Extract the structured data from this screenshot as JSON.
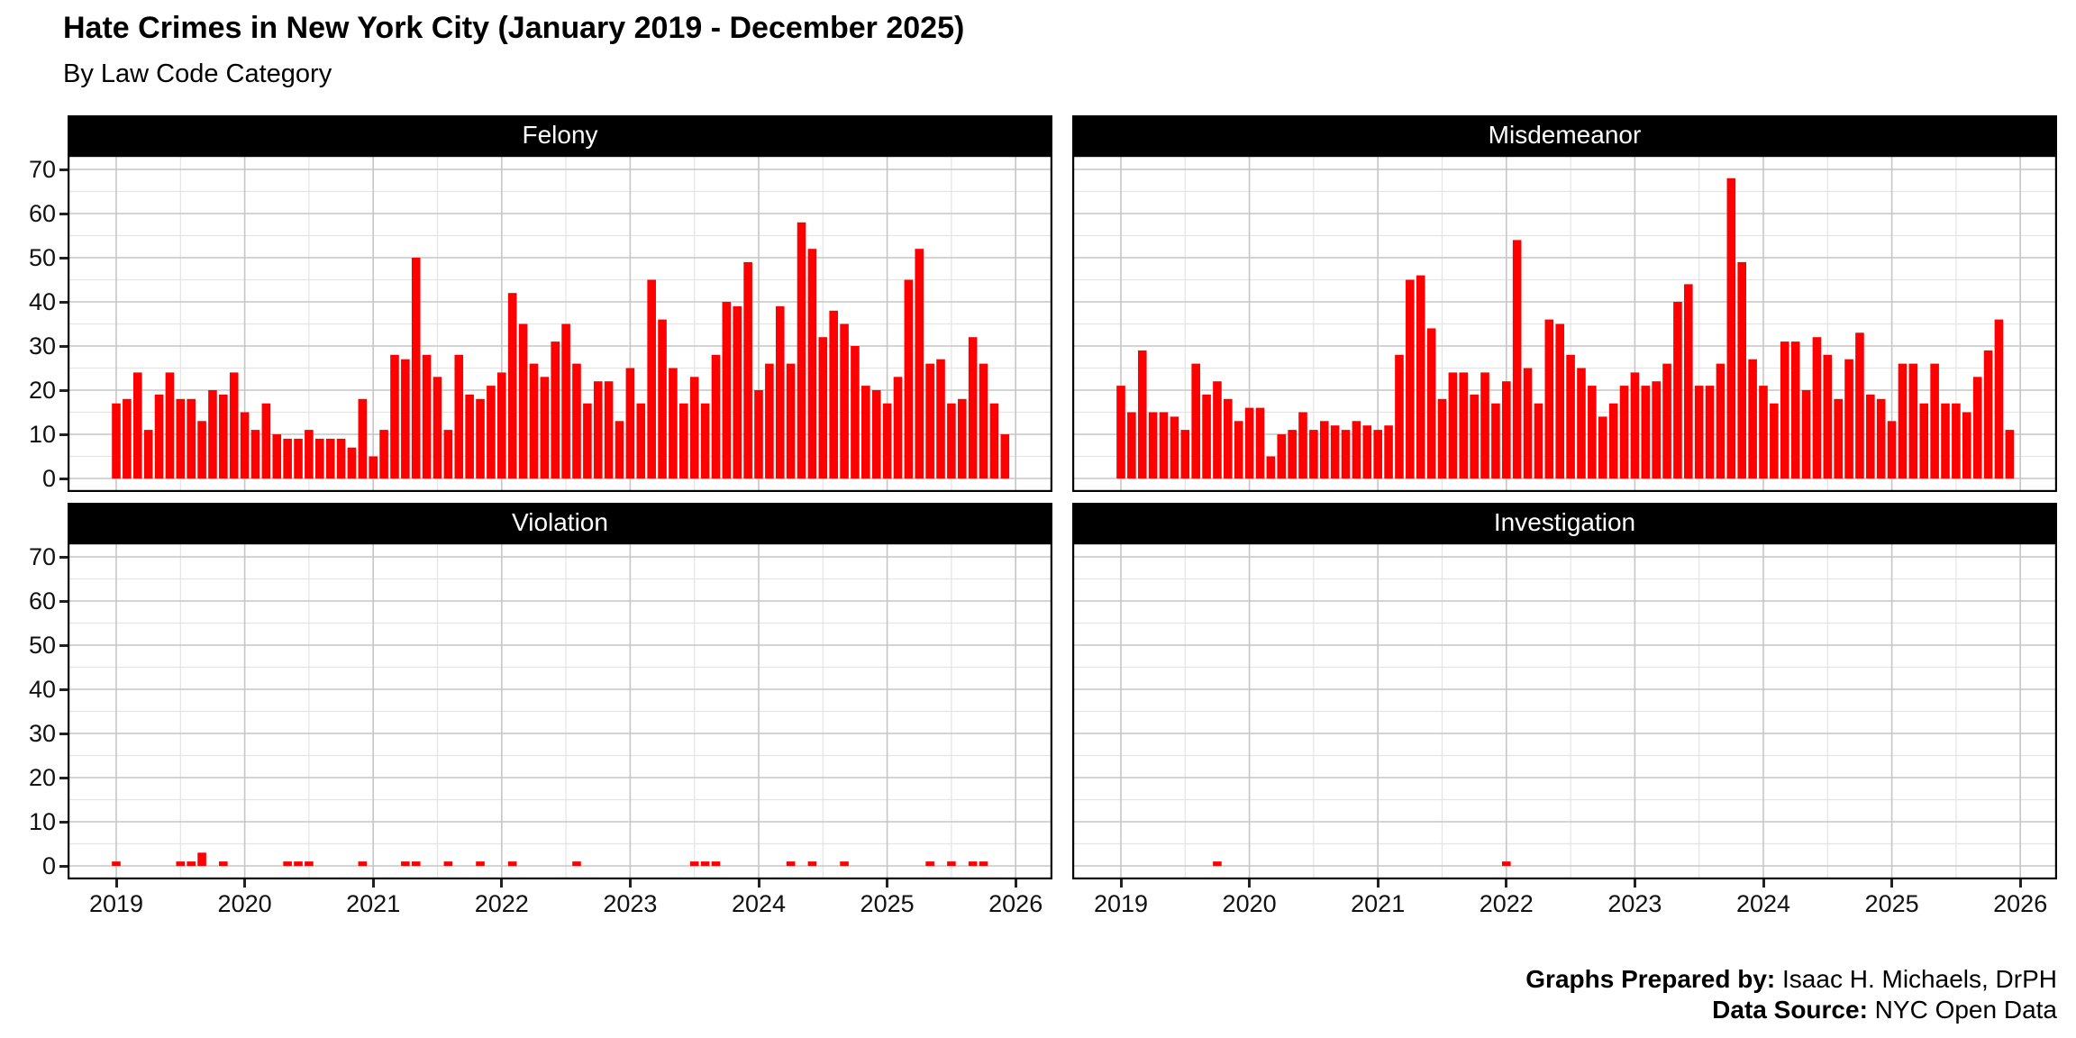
{
  "header": {
    "title": "Hate Crimes in New York City (January 2019 - December 2025)",
    "subtitle": "By Law Code Category"
  },
  "footer": {
    "lines": [
      {
        "label": "Graphs Prepared by:",
        "value": " Isaac H. Michaels, DrPH"
      },
      {
        "label": "Data Source:",
        "value": " NYC Open Data"
      }
    ]
  },
  "colors": {
    "bar": "#FF0000",
    "strip_bg": "#000000",
    "strip_text": "#FFFFFF",
    "grid_major": "#C6C6C6",
    "grid_minor": "#E4E4E4",
    "panel_border": "#000000",
    "background": "#FFFFFF"
  },
  "chart_data": {
    "type": "bar",
    "title": "Hate Crimes in New York City (January 2019 - December 2025)",
    "subtitle": "By Law Code Category",
    "x_start": "2019-01",
    "x_end": "2025-12",
    "frequency": "monthly",
    "x_tick_labels": [
      "2019",
      "2020",
      "2021",
      "2022",
      "2023",
      "2024",
      "2025",
      "2026"
    ],
    "y_ticks": [
      0,
      10,
      20,
      30,
      40,
      50,
      60,
      70
    ],
    "ylim": [
      0,
      73
    ],
    "grid": true,
    "facets": [
      {
        "name": "Felony",
        "values": [
          17,
          18,
          24,
          11,
          19,
          24,
          18,
          18,
          13,
          20,
          19,
          24,
          15,
          11,
          17,
          10,
          9,
          9,
          11,
          9,
          9,
          9,
          7,
          18,
          5,
          11,
          28,
          27,
          50,
          28,
          23,
          11,
          28,
          19,
          18,
          21,
          24,
          42,
          35,
          26,
          23,
          31,
          35,
          26,
          17,
          22,
          22,
          13,
          25,
          17,
          45,
          36,
          25,
          17,
          23,
          17,
          28,
          40,
          39,
          49,
          20,
          26,
          39,
          26,
          58,
          52,
          32,
          38,
          35,
          30,
          21,
          20,
          17,
          23,
          45,
          52,
          26,
          27,
          17,
          18,
          32,
          26,
          17,
          10
        ]
      },
      {
        "name": "Misdemeanor",
        "values": [
          21,
          15,
          29,
          15,
          15,
          14,
          11,
          26,
          19,
          22,
          18,
          13,
          16,
          16,
          5,
          10,
          11,
          15,
          11,
          13,
          12,
          11,
          13,
          12,
          11,
          12,
          28,
          45,
          46,
          34,
          18,
          24,
          24,
          19,
          24,
          17,
          22,
          54,
          25,
          17,
          36,
          35,
          28,
          25,
          21,
          14,
          17,
          21,
          24,
          21,
          22,
          26,
          40,
          44,
          21,
          21,
          26,
          68,
          49,
          27,
          21,
          17,
          31,
          31,
          20,
          32,
          28,
          18,
          27,
          33,
          19,
          18,
          13,
          26,
          26,
          17,
          26,
          17,
          17,
          15,
          23,
          29,
          36,
          11
        ]
      },
      {
        "name": "Violation",
        "values": [
          1,
          0,
          0,
          0,
          0,
          0,
          1,
          1,
          3,
          0,
          1,
          0,
          0,
          0,
          0,
          0,
          1,
          1,
          1,
          0,
          0,
          0,
          0,
          1,
          0,
          0,
          0,
          1,
          1,
          0,
          0,
          1,
          0,
          0,
          1,
          0,
          0,
          1,
          0,
          0,
          0,
          0,
          0,
          1,
          0,
          0,
          0,
          0,
          0,
          0,
          0,
          0,
          0,
          0,
          1,
          1,
          1,
          0,
          0,
          0,
          0,
          0,
          0,
          1,
          0,
          1,
          0,
          0,
          1,
          0,
          0,
          0,
          0,
          0,
          0,
          0,
          1,
          0,
          1,
          0,
          1,
          1,
          0,
          0
        ]
      },
      {
        "name": "Investigation",
        "values": [
          0,
          0,
          0,
          0,
          0,
          0,
          0,
          0,
          0,
          1,
          0,
          0,
          0,
          0,
          0,
          0,
          0,
          0,
          0,
          0,
          0,
          0,
          0,
          0,
          0,
          0,
          0,
          0,
          0,
          0,
          0,
          0,
          0,
          0,
          0,
          0,
          1,
          0,
          0,
          0,
          0,
          0,
          0,
          0,
          0,
          0,
          0,
          0,
          0,
          0,
          0,
          0,
          0,
          0,
          0,
          0,
          0,
          0,
          0,
          0,
          0,
          0,
          0,
          0,
          0,
          0,
          0,
          0,
          0,
          0,
          0,
          0,
          0,
          0,
          0,
          0,
          0,
          0,
          0,
          0,
          0,
          0,
          0,
          0
        ]
      }
    ]
  }
}
